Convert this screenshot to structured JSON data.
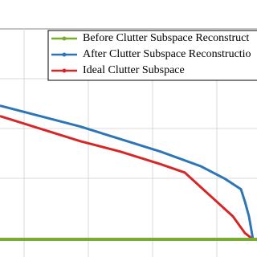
{
  "chart_data": {
    "type": "line",
    "series": [
      {
        "name": "Before Clutter Subspace Reconstruct",
        "color": "#77ac30",
        "x": [
          0,
          320
        ],
        "values": [
          0,
          0
        ]
      },
      {
        "name": "After Clutter Subspace Reconstructio",
        "color": "#2e75b6",
        "x": [
          0,
          50,
          100,
          150,
          200,
          250,
          280,
          300,
          305,
          310,
          315
        ],
        "values": [
          64,
          59,
          54,
          48,
          42,
          35,
          29,
          24,
          18,
          11,
          0
        ]
      },
      {
        "name": "Ideal Clutter Subspace",
        "color": "#d62728",
        "x": [
          0,
          50,
          100,
          150,
          200,
          230,
          250,
          270,
          290,
          305,
          315
        ],
        "values": [
          59,
          53,
          47,
          42,
          36,
          32,
          25,
          18,
          11,
          3,
          0
        ]
      }
    ],
    "xlim": [
      0,
      320
    ],
    "ylim": [
      0,
      100
    ],
    "grid": true
  }
}
